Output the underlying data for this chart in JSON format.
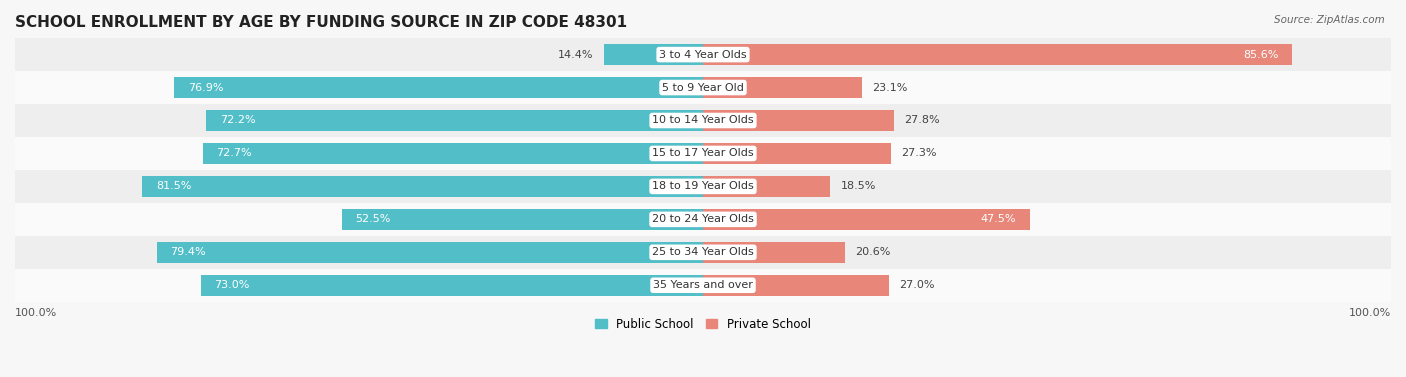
{
  "title": "SCHOOL ENROLLMENT BY AGE BY FUNDING SOURCE IN ZIP CODE 48301",
  "source": "Source: ZipAtlas.com",
  "categories": [
    "3 to 4 Year Olds",
    "5 to 9 Year Old",
    "10 to 14 Year Olds",
    "15 to 17 Year Olds",
    "18 to 19 Year Olds",
    "20 to 24 Year Olds",
    "25 to 34 Year Olds",
    "35 Years and over"
  ],
  "public_values": [
    14.4,
    76.9,
    72.2,
    72.7,
    81.5,
    52.5,
    79.4,
    73.0
  ],
  "private_values": [
    85.6,
    23.1,
    27.8,
    27.3,
    18.5,
    47.5,
    20.6,
    27.0
  ],
  "public_color": "#52BEC7",
  "private_color": "#E8867A",
  "public_label": "Public School",
  "private_label": "Private School",
  "bg_color": "#f7f7f7",
  "row_colors": [
    "#eeeeee",
    "#fafafa"
  ],
  "label_color_white": "#ffffff",
  "label_color_dark": "#444444",
  "axis_label_left": "100.0%",
  "axis_label_right": "100.0%",
  "title_fontsize": 11,
  "label_fontsize": 8,
  "category_fontsize": 8
}
